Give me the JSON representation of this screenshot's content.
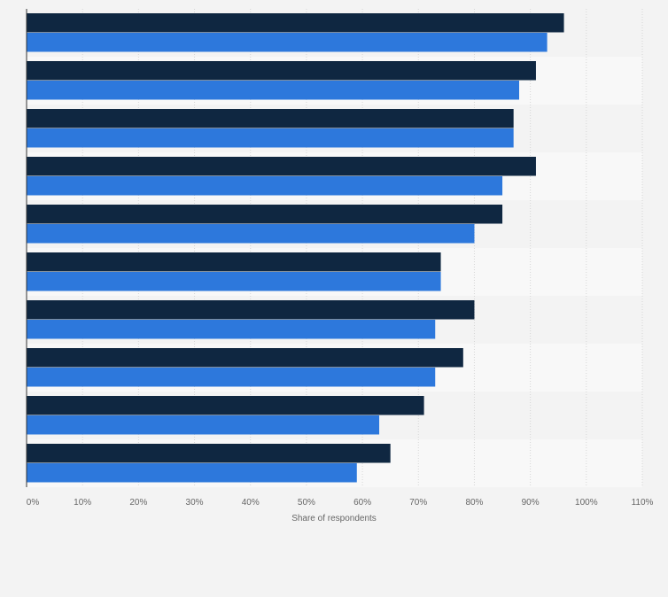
{
  "chart_data": {
    "type": "bar",
    "orientation": "horizontal",
    "categories": [
      "",
      "",
      "",
      "",
      "",
      "",
      "",
      "",
      "",
      ""
    ],
    "series": [
      {
        "color": "#0f2741",
        "values": [
          96,
          91,
          87,
          91,
          85,
          74,
          80,
          78,
          71,
          65
        ]
      },
      {
        "color": "#2d78dc",
        "values": [
          93,
          88,
          87,
          85,
          80,
          74,
          73,
          73,
          63,
          59
        ]
      }
    ],
    "xlabel": "Share of respondents",
    "ylabel": "",
    "xlim": [
      0,
      110
    ],
    "xticks": [
      "0%",
      "10%",
      "20%",
      "30%",
      "40%",
      "50%",
      "60%",
      "70%",
      "80%",
      "90%",
      "100%",
      "110%"
    ],
    "grid": "vertical dashed",
    "legend": "none"
  }
}
